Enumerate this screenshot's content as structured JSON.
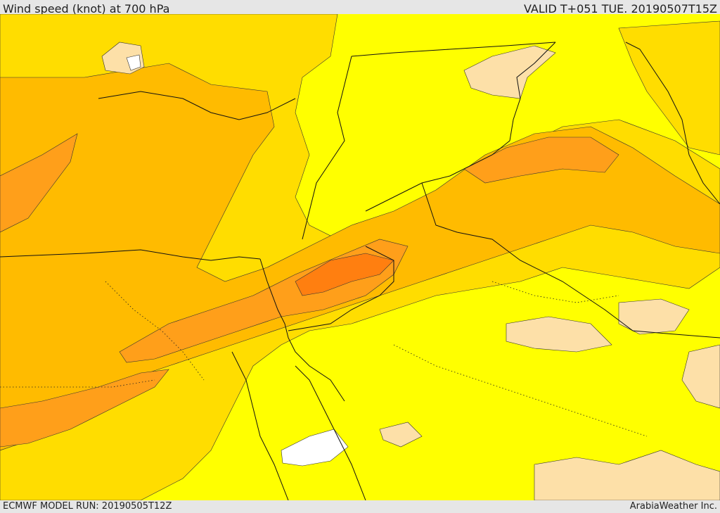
{
  "header": {
    "title": "Wind speed (knot) at 700 hPa",
    "valid": "VALID T+051 TUE. 20190507T15Z"
  },
  "footer": {
    "model_run": "ECMWF MODEL RUN: 20190505T12Z",
    "credit": "ArabiaWeather Inc."
  },
  "map": {
    "layer": "wind speed at 700 hPa shaded contours",
    "colors": {
      "calm_white": "#ffffff",
      "very_light": "#fde0a8",
      "light": "#ffff00",
      "moderate_light": "#ffdd00",
      "moderate": "#ffbb00",
      "strong": "#ff9f1a",
      "strongest": "#ff7f10",
      "boundary": "#111111"
    }
  }
}
